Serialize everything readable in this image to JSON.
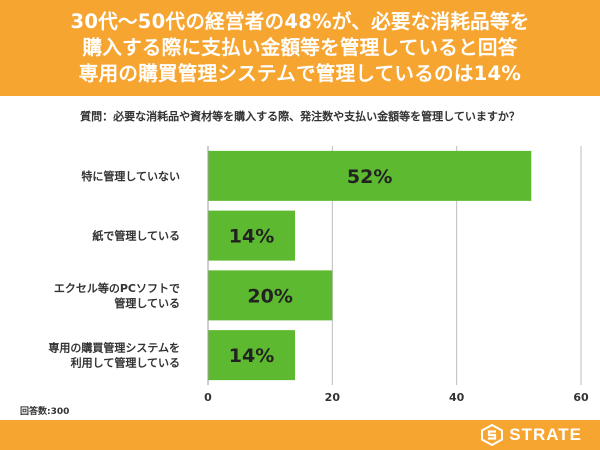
{
  "header": {
    "lines": [
      "30代〜50代の経営者の48%が、必要な消耗品等を",
      "購入する際に支払い金額等を管理していると回答",
      "専用の購買管理システムで管理しているのは14%"
    ]
  },
  "question": "質問：必要な消耗品や資材等を購入する際、発注数や支払い金額等を管理していますか？",
  "respondents": "回答数:300",
  "brand": {
    "name": "STRATE",
    "color": "#f7a531"
  },
  "colors": {
    "bar": "#5db92f",
    "grid": "#bdbdbd",
    "axis": "#9e9e9e"
  },
  "chart_data": {
    "type": "bar",
    "orientation": "horizontal",
    "categories": [
      [
        "特に管理していない"
      ],
      [
        "紙で管理している"
      ],
      [
        "エクセル等のPCソフトで",
        "管理している"
      ],
      [
        "専用の購買管理システムを",
        "利用して管理している"
      ]
    ],
    "values": [
      52,
      14,
      20,
      14
    ],
    "value_labels": [
      "52%",
      "14%",
      "20%",
      "14%"
    ],
    "xlim": [
      0,
      60
    ],
    "xticks": [
      "0",
      "20",
      "40",
      "60"
    ],
    "xtick_values": [
      0,
      20,
      40,
      60
    ],
    "unit": "%"
  }
}
